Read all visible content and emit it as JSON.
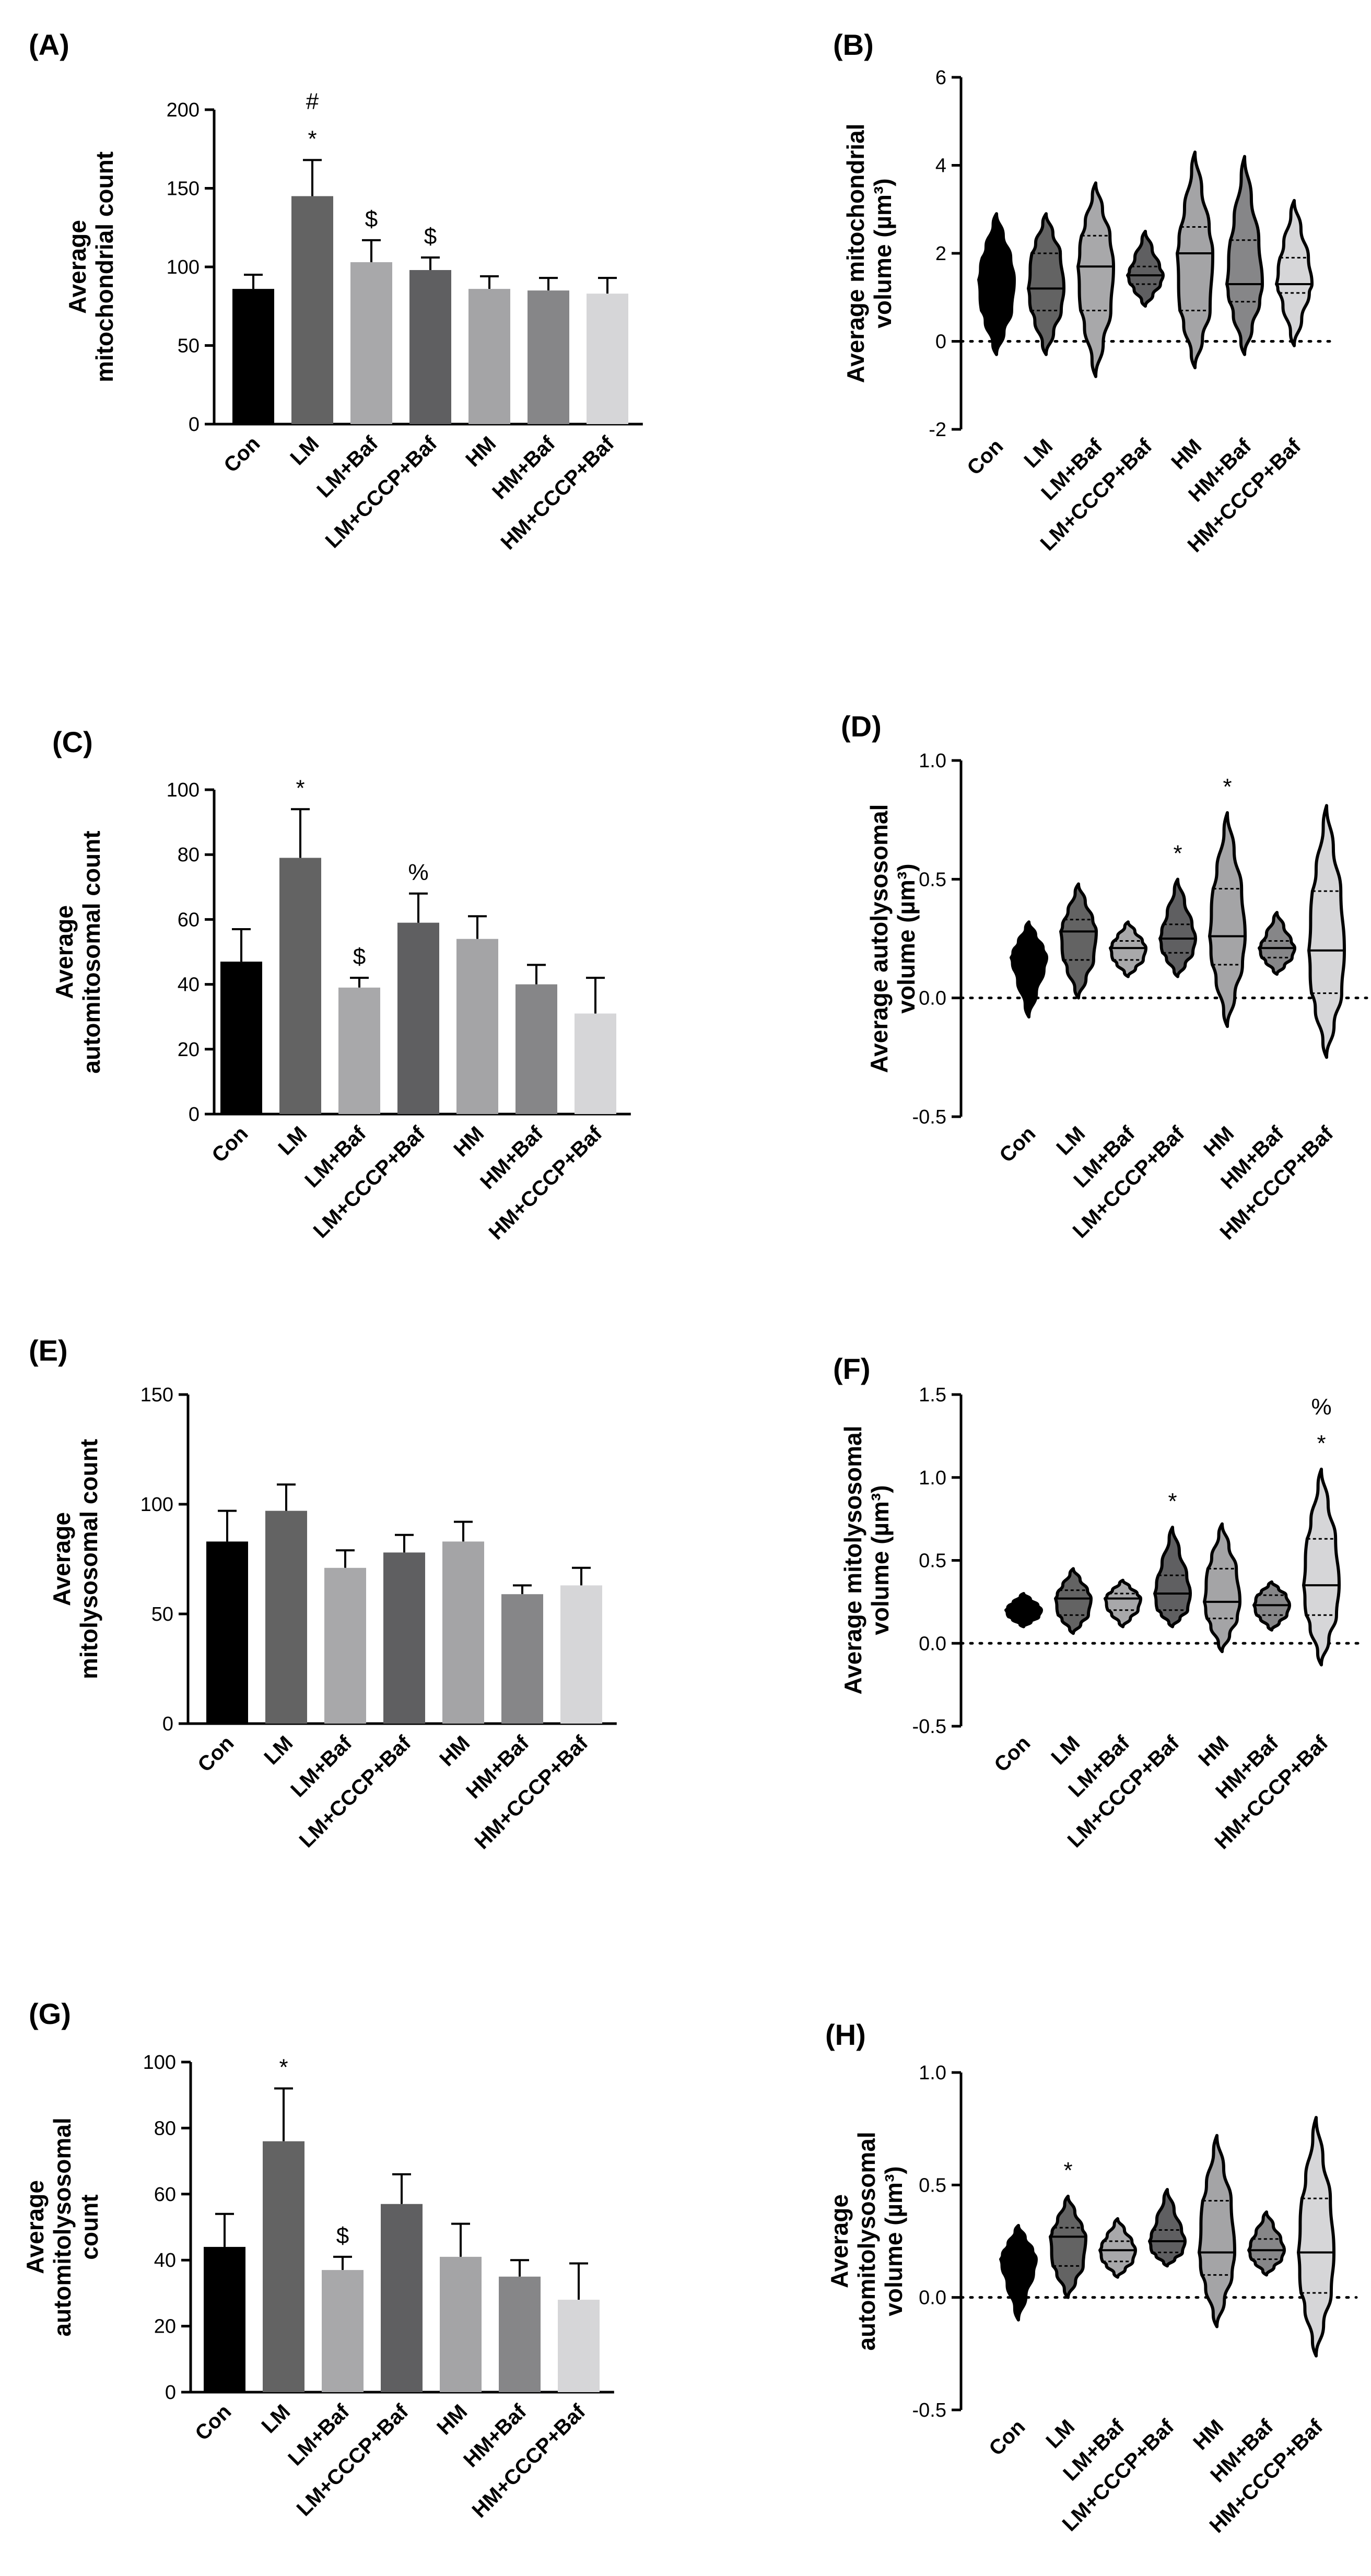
{
  "colors": [
    "#000000",
    "#636363",
    "#a8a8aa",
    "#5f5f61",
    "#a4a4a6",
    "#868688",
    "#d6d6d8"
  ],
  "chart_data": [
    {
      "panel": "(A)",
      "type": "bar",
      "ylabel": [
        "Average",
        "mitochondrial count"
      ],
      "categories": [
        "Con",
        "LM",
        "LM+Baf",
        "LM+CCCP+Baf",
        "HM",
        "HM+Baf",
        "HM+CCCP+Baf"
      ],
      "values": [
        86,
        145,
        103,
        98,
        86,
        85,
        83
      ],
      "errors": [
        9,
        23,
        14,
        8,
        8,
        8,
        10
      ],
      "marks": [
        "",
        "*|#",
        "$",
        "$",
        "",
        "",
        ""
      ],
      "ylim": [
        0,
        200
      ],
      "yticks": [
        0,
        50,
        100,
        150,
        200
      ]
    },
    {
      "panel": "(B)",
      "type": "violin",
      "ylabel": [
        "Average mitochondrial",
        "volume (µm³)"
      ],
      "categories": [
        "Con",
        "LM",
        "LM+Baf",
        "LM+CCCP+Baf",
        "HM",
        "HM+Baf",
        "HM+CCCP+Baf"
      ],
      "min": [
        -0.3,
        -0.3,
        -0.8,
        0.8,
        -0.6,
        -0.3,
        -0.1
      ],
      "max": [
        2.9,
        2.9,
        3.6,
        2.5,
        4.3,
        4.2,
        3.2
      ],
      "median": [
        1.4,
        1.2,
        1.7,
        1.5,
        2.0,
        1.3,
        1.3
      ],
      "q1": [
        0.7,
        0.7,
        0.7,
        1.3,
        0.7,
        0.9,
        1.1
      ],
      "q3": [
        1.9,
        2.0,
        2.4,
        1.7,
        2.6,
        2.3,
        1.9
      ],
      "marks": [
        "",
        "",
        "",
        "",
        "",
        "",
        ""
      ],
      "ylim": [
        -2,
        6
      ],
      "yticks": [
        -2,
        0,
        2,
        4,
        6
      ]
    },
    {
      "panel": "(C)",
      "type": "bar",
      "ylabel": [
        "Average",
        "automitosomal count"
      ],
      "categories": [
        "Con",
        "LM",
        "LM+Baf",
        "LM+CCCP+Baf",
        "HM",
        "HM+Baf",
        "HM+CCCP+Baf"
      ],
      "values": [
        47,
        79,
        39,
        59,
        54,
        40,
        31
      ],
      "errors": [
        10,
        15,
        3,
        9,
        7,
        6,
        11
      ],
      "marks": [
        "",
        "*",
        "$",
        "%",
        "",
        "",
        ""
      ],
      "ylim": [
        0,
        100
      ],
      "yticks": [
        0,
        20,
        40,
        60,
        80,
        100
      ]
    },
    {
      "panel": "(D)",
      "type": "violin",
      "ylabel": [
        "Average autolysosomal",
        "volume (µm³)"
      ],
      "categories": [
        "Con",
        "LM",
        "LM+Baf",
        "LM+CCCP+Baf",
        "HM",
        "HM+Baf",
        "HM+CCCP+Baf"
      ],
      "min": [
        -0.08,
        0.0,
        0.09,
        0.09,
        -0.12,
        0.1,
        -0.25
      ],
      "max": [
        0.32,
        0.48,
        0.32,
        0.5,
        0.78,
        0.36,
        0.81
      ],
      "median": [
        0.17,
        0.28,
        0.21,
        0.25,
        0.26,
        0.21,
        0.2
      ],
      "q1": [
        0.12,
        0.16,
        0.16,
        0.19,
        0.14,
        0.17,
        0.02
      ],
      "q3": [
        0.21,
        0.33,
        0.24,
        0.31,
        0.46,
        0.24,
        0.45
      ],
      "marks": [
        "",
        "",
        "",
        "*",
        "*",
        "",
        ""
      ],
      "ylim": [
        -0.5,
        1.0
      ],
      "yticks": [
        -0.5,
        0.0,
        0.5,
        1.0
      ]
    },
    {
      "panel": "(E)",
      "type": "bar",
      "ylabel": [
        "Average",
        "mitolysosomal count"
      ],
      "categories": [
        "Con",
        "LM",
        "LM+Baf",
        "LM+CCCP+Baf",
        "HM",
        "HM+Baf",
        "HM+CCCP+Baf"
      ],
      "values": [
        83,
        97,
        71,
        78,
        83,
        59,
        63
      ],
      "errors": [
        14,
        12,
        8,
        8,
        9,
        4,
        8
      ],
      "marks": [
        "",
        "",
        "",
        "",
        "",
        "",
        ""
      ],
      "ylim": [
        0,
        150
      ],
      "yticks": [
        0,
        50,
        100,
        150
      ]
    },
    {
      "panel": "(F)",
      "type": "violin",
      "ylabel": [
        "Average mitolysosomal",
        "volume (µm³)"
      ],
      "categories": [
        "Con",
        "LM",
        "LM+Baf",
        "LM+CCCP+Baf",
        "HM",
        "HM+Baf",
        "HM+CCCP+Baf"
      ],
      "min": [
        0.1,
        0.06,
        0.1,
        0.1,
        -0.05,
        0.08,
        -0.13
      ],
      "max": [
        0.3,
        0.45,
        0.38,
        0.7,
        0.72,
        0.37,
        1.05
      ],
      "median": [
        0.2,
        0.27,
        0.27,
        0.3,
        0.25,
        0.23,
        0.35
      ],
      "q1": [
        0.16,
        0.17,
        0.2,
        0.2,
        0.15,
        0.17,
        0.17
      ],
      "q3": [
        0.23,
        0.32,
        0.3,
        0.41,
        0.45,
        0.29,
        0.63
      ],
      "marks": [
        "",
        "",
        "",
        "*",
        "",
        "",
        "*|%"
      ],
      "ylim": [
        -0.5,
        1.5
      ],
      "yticks": [
        -0.5,
        0.0,
        0.5,
        1.0,
        1.5
      ]
    },
    {
      "panel": "(G)",
      "type": "bar",
      "ylabel": [
        "Average",
        "automitolysosomal",
        "count"
      ],
      "categories": [
        "Con",
        "LM",
        "LM+Baf",
        "LM+CCCP+Baf",
        "HM",
        "HM+Baf",
        "HM+CCCP+Baf"
      ],
      "values": [
        44,
        76,
        37,
        57,
        41,
        35,
        28
      ],
      "errors": [
        10,
        16,
        4,
        9,
        10,
        5,
        11
      ],
      "marks": [
        "",
        "*",
        "$",
        "",
        "",
        "",
        ""
      ],
      "ylim": [
        0,
        100
      ],
      "yticks": [
        0,
        20,
        40,
        60,
        80,
        100
      ]
    },
    {
      "panel": "(H)",
      "type": "violin",
      "ylabel": [
        "Average",
        "automitolysosomal",
        "volume (µm³)"
      ],
      "categories": [
        "Con",
        "LM",
        "LM+Baf",
        "LM+CCCP+Baf",
        "HM",
        "HM+Baf",
        "HM+CCCP+Baf"
      ],
      "min": [
        -0.1,
        0.0,
        0.09,
        0.14,
        -0.13,
        0.1,
        -0.26
      ],
      "max": [
        0.32,
        0.45,
        0.35,
        0.48,
        0.72,
        0.38,
        0.8
      ],
      "median": [
        0.17,
        0.27,
        0.21,
        0.25,
        0.2,
        0.21,
        0.2
      ],
      "q1": [
        0.11,
        0.14,
        0.16,
        0.2,
        0.1,
        0.17,
        0.02
      ],
      "q3": [
        0.21,
        0.31,
        0.25,
        0.3,
        0.43,
        0.26,
        0.44
      ],
      "marks": [
        "",
        "*",
        "",
        "",
        "",
        "",
        ""
      ],
      "ylim": [
        -0.5,
        1.0
      ],
      "yticks": [
        -0.5,
        0.0,
        0.5,
        1.0
      ]
    }
  ]
}
